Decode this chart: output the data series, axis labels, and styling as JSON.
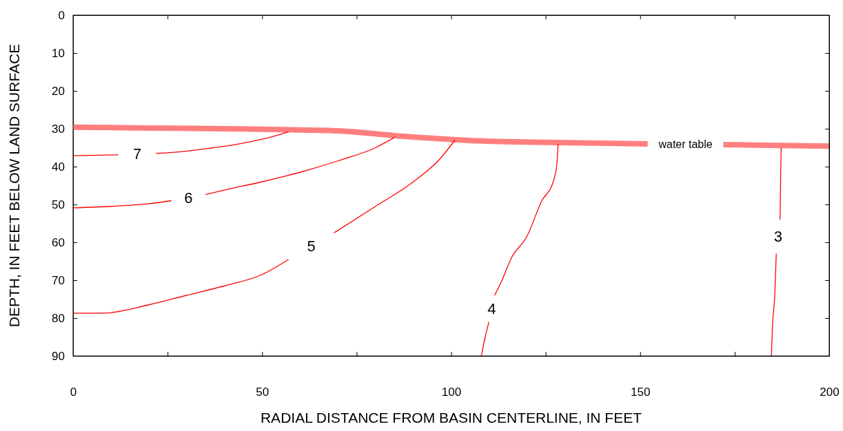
{
  "chart_data": {
    "type": "line",
    "xlabel": "RADIAL DISTANCE FROM BASIN CENTERLINE, IN FEET",
    "ylabel": "DEPTH, IN FEET BELOW LAND SURFACE",
    "xlim": [
      0,
      200
    ],
    "ylim": [
      90,
      0
    ],
    "xticks": [
      0,
      {
        "value": 25,
        "label": null
      },
      50,
      {
        "value": 75,
        "label": null
      },
      100,
      {
        "value": 125,
        "label": null
      },
      150,
      {
        "value": 175,
        "label": null
      },
      200
    ],
    "yticks": [
      0,
      10,
      20,
      30,
      40,
      50,
      60,
      70,
      80,
      90
    ],
    "grid": false,
    "marker": "none",
    "line_style": "solid",
    "series": [
      {
        "name": "water table",
        "color": "#ff7f7f",
        "x": [
          0,
          20,
          40,
          60,
          71,
          85,
          100,
          107,
          125,
          152,
          162,
          172,
          180,
          200
        ],
        "values": [
          29.6,
          29.8,
          30.0,
          30.3,
          30.6,
          31.8,
          32.8,
          33.2,
          33.6,
          34.0,
          null,
          34.2,
          34.3,
          34.6
        ]
      },
      {
        "name": "7",
        "color": "#ff0000",
        "x": [
          0,
          12,
          17,
          22,
          28,
          35,
          45,
          52,
          57
        ],
        "values": [
          37.1,
          36.9,
          null,
          36.5,
          36.1,
          35.3,
          33.8,
          32.3,
          30.8
        ]
      },
      {
        "name": "6",
        "color": "#ff0000",
        "x": [
          0,
          10,
          20,
          26,
          30.5,
          35,
          40,
          50,
          60,
          70,
          80,
          85
        ],
        "values": [
          50.9,
          50.5,
          49.8,
          49,
          null,
          47.4,
          46.2,
          44,
          41.5,
          38.5,
          35,
          32.3
        ]
      },
      {
        "name": "5",
        "color": "#ff0000",
        "x": [
          0,
          8,
          20,
          30,
          40,
          50,
          57,
          63.5,
          69,
          80,
          90,
          97,
          101
        ],
        "values": [
          78.7,
          78.7,
          76.5,
          74,
          71.5,
          68.5,
          64.5,
          null,
          57.5,
          50.5,
          44,
          38,
          33
        ]
      },
      {
        "name": "4",
        "color": "#ff0000",
        "x": [
          108,
          109,
          110,
          110.75,
          111.5,
          113,
          116,
          120,
          124,
          127,
          128,
          128.3
        ],
        "values": [
          90,
          85,
          81,
          null,
          74,
          71,
          64,
          58.5,
          49,
          44,
          39,
          34
        ]
      },
      {
        "name": "3",
        "color": "#ff0000",
        "x": [
          184.7,
          185,
          185.6,
          186,
          186.5,
          187,
          187.2,
          187.3
        ],
        "values": [
          90,
          82,
          74,
          63,
          null,
          54,
          40,
          35
        ]
      }
    ]
  }
}
